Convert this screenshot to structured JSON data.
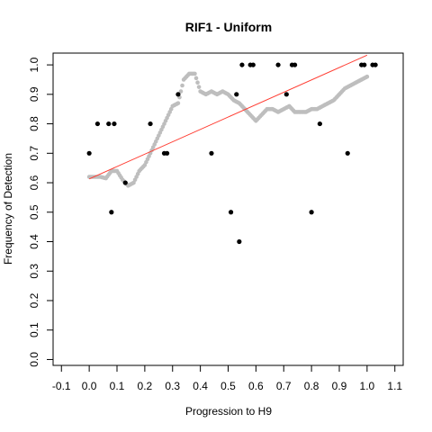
{
  "chart_data": {
    "type": "scatter",
    "title": "RIF1 - Uniform",
    "xlabel": "Progression to H9",
    "ylabel": "Frequency of Detection",
    "xlim": [
      -0.13,
      1.13
    ],
    "ylim": [
      -0.02,
      1.04
    ],
    "x_ticks": [
      -0.1,
      0.0,
      0.1,
      0.2,
      0.3,
      0.4,
      0.5,
      0.6,
      0.7,
      0.8,
      0.9,
      1.0,
      1.1
    ],
    "x_tick_labels": [
      "-0.1",
      "0.0",
      "0.1",
      "0.2",
      "0.3",
      "0.4",
      "0.5",
      "0.6",
      "0.7",
      "0.8",
      "0.9",
      "1.0",
      "1.1"
    ],
    "y_ticks": [
      0.0,
      0.1,
      0.2,
      0.3,
      0.4,
      0.5,
      0.6,
      0.7,
      0.8,
      0.9,
      1.0
    ],
    "y_tick_labels": [
      "0.0",
      "0.1",
      "0.2",
      "0.3",
      "0.4",
      "0.5",
      "0.6",
      "0.7",
      "0.8",
      "0.9",
      "1.0"
    ],
    "grid": false,
    "colors": {
      "points": "#000000",
      "smooth": "#bebebe",
      "fit": "#ff3b30"
    },
    "trend_line": {
      "x": [
        0.0,
        1.0
      ],
      "y": [
        0.613,
        1.033
      ]
    },
    "smoothed": {
      "x": [
        0.0,
        0.02,
        0.04,
        0.06,
        0.08,
        0.1,
        0.12,
        0.14,
        0.16,
        0.18,
        0.2,
        0.22,
        0.24,
        0.26,
        0.28,
        0.3,
        0.32,
        0.34,
        0.36,
        0.38,
        0.4,
        0.42,
        0.44,
        0.46,
        0.48,
        0.5,
        0.52,
        0.54,
        0.56,
        0.58,
        0.6,
        0.62,
        0.64,
        0.66,
        0.68,
        0.7,
        0.72,
        0.74,
        0.76,
        0.78,
        0.8,
        0.82,
        0.84,
        0.86,
        0.88,
        0.9,
        0.92,
        0.94,
        0.96,
        0.98,
        1.0
      ],
      "y": [
        0.62,
        0.62,
        0.62,
        0.615,
        0.64,
        0.64,
        0.61,
        0.59,
        0.6,
        0.64,
        0.66,
        0.7,
        0.74,
        0.78,
        0.82,
        0.86,
        0.87,
        0.95,
        0.97,
        0.97,
        0.91,
        0.9,
        0.91,
        0.9,
        0.91,
        0.9,
        0.88,
        0.87,
        0.85,
        0.83,
        0.81,
        0.83,
        0.85,
        0.85,
        0.84,
        0.85,
        0.86,
        0.84,
        0.84,
        0.84,
        0.85,
        0.85,
        0.86,
        0.87,
        0.88,
        0.9,
        0.92,
        0.93,
        0.94,
        0.95,
        0.96
      ]
    },
    "points": {
      "x": [
        0.0,
        0.03,
        0.07,
        0.08,
        0.09,
        0.13,
        0.22,
        0.27,
        0.28,
        0.32,
        0.44,
        0.51,
        0.53,
        0.54,
        0.55,
        0.58,
        0.59,
        0.68,
        0.71,
        0.73,
        0.74,
        0.8,
        0.83,
        0.93,
        0.98,
        0.99,
        1.02,
        1.03
      ],
      "y": [
        0.7,
        0.8,
        0.8,
        0.5,
        0.8,
        0.6,
        0.8,
        0.7,
        0.7,
        0.9,
        0.7,
        0.5,
        0.9,
        0.4,
        1.0,
        1.0,
        1.0,
        1.0,
        0.9,
        1.0,
        1.0,
        0.5,
        0.8,
        0.7,
        1.0,
        1.0,
        1.0,
        1.0
      ]
    }
  }
}
